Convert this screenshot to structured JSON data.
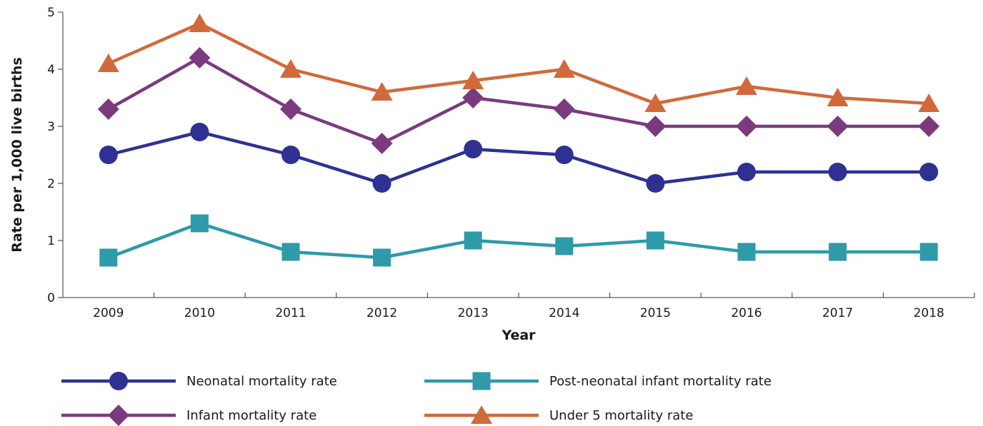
{
  "chart_data": {
    "type": "line",
    "x": [
      "2009",
      "2010",
      "2011",
      "2012",
      "2013",
      "2014",
      "2015",
      "2016",
      "2017",
      "2018"
    ],
    "xlabel": "Year",
    "ylabel": "Rate per 1,000 live births",
    "ylim": [
      0,
      5
    ],
    "yticks": [
      "0",
      "1",
      "2",
      "3",
      "4",
      "5"
    ],
    "grid": false,
    "legend_position": "bottom",
    "series": [
      {
        "name": "Neonatal mortality rate",
        "color": "#2E3192",
        "marker": "circle",
        "values": [
          2.5,
          2.9,
          2.5,
          2.0,
          2.6,
          2.5,
          2.0,
          2.2,
          2.2,
          2.2
        ]
      },
      {
        "name": "Post-neonatal infant mortality rate",
        "color": "#2E9AAA",
        "marker": "square",
        "values": [
          0.7,
          1.3,
          0.8,
          0.7,
          1.0,
          0.9,
          1.0,
          0.8,
          0.8,
          0.8
        ]
      },
      {
        "name": "Infant mortality rate",
        "color": "#7B3A7E",
        "marker": "diamond",
        "values": [
          3.3,
          4.2,
          3.3,
          2.7,
          3.5,
          3.3,
          3.0,
          3.0,
          3.0,
          3.0
        ]
      },
      {
        "name": "Under 5 mortality rate",
        "color": "#D2693A",
        "marker": "triangle",
        "values": [
          4.1,
          4.8,
          4.0,
          3.6,
          3.8,
          4.0,
          3.4,
          3.7,
          3.5,
          3.4
        ]
      }
    ]
  }
}
